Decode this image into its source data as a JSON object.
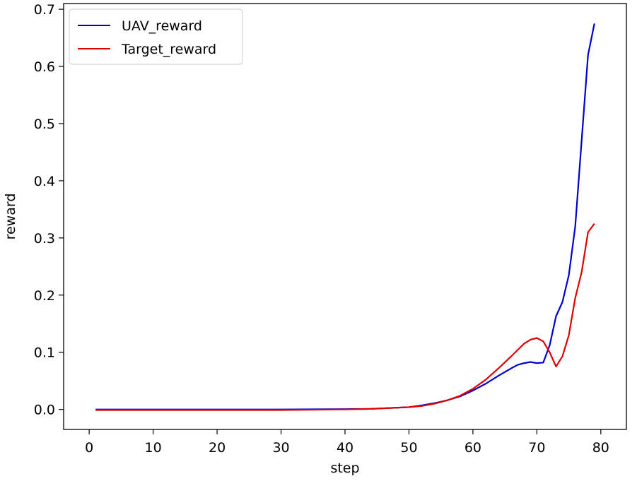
{
  "chart_data": {
    "type": "line",
    "title": "",
    "xlabel": "step",
    "ylabel": "reward",
    "xlim": [
      -4,
      84
    ],
    "ylim": [
      -0.035,
      0.71
    ],
    "xticks": [
      0,
      10,
      20,
      30,
      40,
      50,
      60,
      70,
      80
    ],
    "yticks": [
      0.0,
      0.1,
      0.2,
      0.3,
      0.4,
      0.5,
      0.6,
      0.7
    ],
    "xtick_labels": [
      "0",
      "10",
      "20",
      "30",
      "40",
      "50",
      "60",
      "70",
      "80"
    ],
    "ytick_labels": [
      "0.0",
      "0.1",
      "0.2",
      "0.3",
      "0.4",
      "0.5",
      "0.6",
      "0.7"
    ],
    "grid": false,
    "legend_position": "top-left",
    "series": [
      {
        "name": "UAV_reward",
        "color": "#0000cc",
        "x": [
          1,
          10,
          20,
          30,
          40,
          44,
          46,
          48,
          50,
          52,
          54,
          56,
          58,
          60,
          62,
          64,
          66,
          67,
          68,
          69,
          70,
          71,
          72,
          73,
          74,
          75,
          76,
          77,
          78,
          79
        ],
        "y": [
          0.0,
          0.0,
          0.0,
          0.0,
          0.0005,
          0.001,
          0.002,
          0.003,
          0.004,
          0.007,
          0.011,
          0.016,
          0.023,
          0.033,
          0.045,
          0.059,
          0.072,
          0.078,
          0.081,
          0.083,
          0.081,
          0.082,
          0.112,
          0.163,
          0.188,
          0.235,
          0.32,
          0.47,
          0.62,
          0.675
        ]
      },
      {
        "name": "Target_reward",
        "color": "#dd0000",
        "x": [
          1,
          10,
          20,
          30,
          40,
          44,
          46,
          48,
          50,
          52,
          54,
          56,
          58,
          60,
          62,
          64,
          66,
          67,
          68,
          69,
          70,
          71,
          72,
          73,
          74,
          75,
          76,
          77,
          78,
          79
        ],
        "y": [
          -0.001,
          -0.001,
          -0.001,
          -0.001,
          0.0,
          0.001,
          0.002,
          0.003,
          0.004,
          0.006,
          0.01,
          0.016,
          0.024,
          0.036,
          0.052,
          0.072,
          0.093,
          0.104,
          0.115,
          0.122,
          0.125,
          0.119,
          0.1,
          0.075,
          0.093,
          0.13,
          0.195,
          0.24,
          0.31,
          0.325
        ]
      }
    ]
  }
}
